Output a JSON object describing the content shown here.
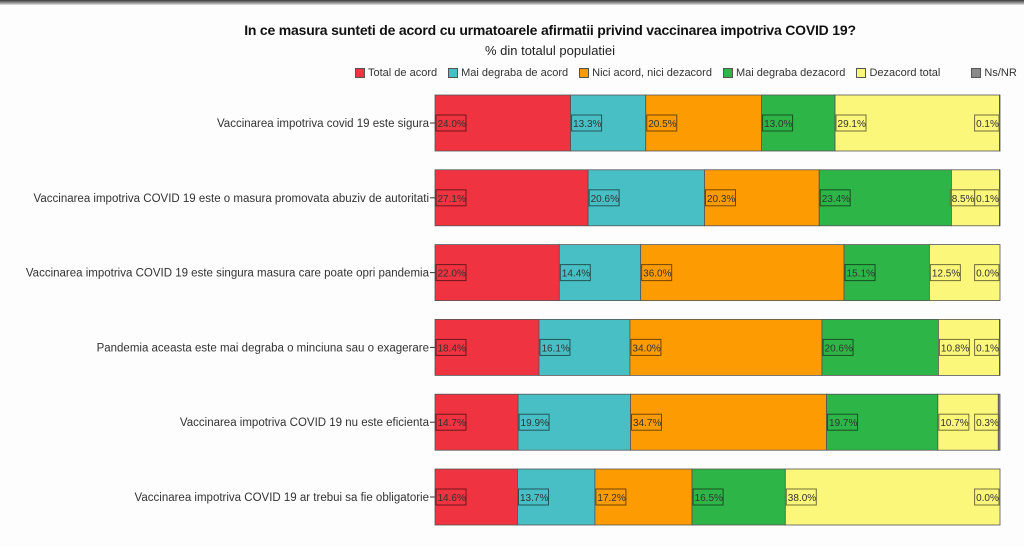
{
  "chart_data": {
    "type": "bar",
    "orientation": "horizontal",
    "stacked": true,
    "title": "In ce masura sunteti de acord cu urmatoarele afirmatii privind vaccinarea impotriva COVID 19?",
    "subtitle": "% din totalul populatiei",
    "xlabel": "",
    "ylabel": "",
    "xlim": [
      0,
      100
    ],
    "grid": false,
    "legend_position": "top-right",
    "categories": [
      "Vaccinarea impotriva covid 19 este sigura",
      "Vaccinarea impotriva COVID 19 este o masura promovata abuziv de autoritati",
      "Vaccinarea impotriva COVID 19 este singura masura care poate opri pandemia",
      "Pandemia aceasta este mai degraba o minciuna sau o exagerare",
      "Vaccinarea impotriva COVID 19 nu este eficienta",
      "Vaccinarea impotriva COVID 19 ar trebui sa fie obligatorie"
    ],
    "series": [
      {
        "name": "Total de acord",
        "color": "#ef3340",
        "values": [
          24.0,
          27.1,
          22.0,
          18.4,
          14.7,
          14.6
        ]
      },
      {
        "name": "Mai degraba de acord",
        "color": "#48bfc4",
        "values": [
          13.3,
          20.6,
          14.4,
          16.1,
          19.9,
          13.7
        ]
      },
      {
        "name": "Nici acord, nici dezacord",
        "color": "#fc9b02",
        "values": [
          20.5,
          20.3,
          36.0,
          34.0,
          34.7,
          17.2
        ]
      },
      {
        "name": "Mai degraba dezacord",
        "color": "#2eb548",
        "values": [
          13.0,
          23.4,
          15.1,
          20.6,
          19.7,
          16.5
        ]
      },
      {
        "name": "Dezacord total",
        "color": "#fbf77a",
        "values": [
          29.1,
          8.5,
          12.5,
          10.8,
          10.7,
          38.0
        ]
      },
      {
        "name": "Ns/NR",
        "color": "#8a8a8a",
        "values": [
          0.1,
          0.1,
          0.0,
          0.1,
          0.3,
          0.0
        ]
      }
    ],
    "value_suffix": "%"
  }
}
